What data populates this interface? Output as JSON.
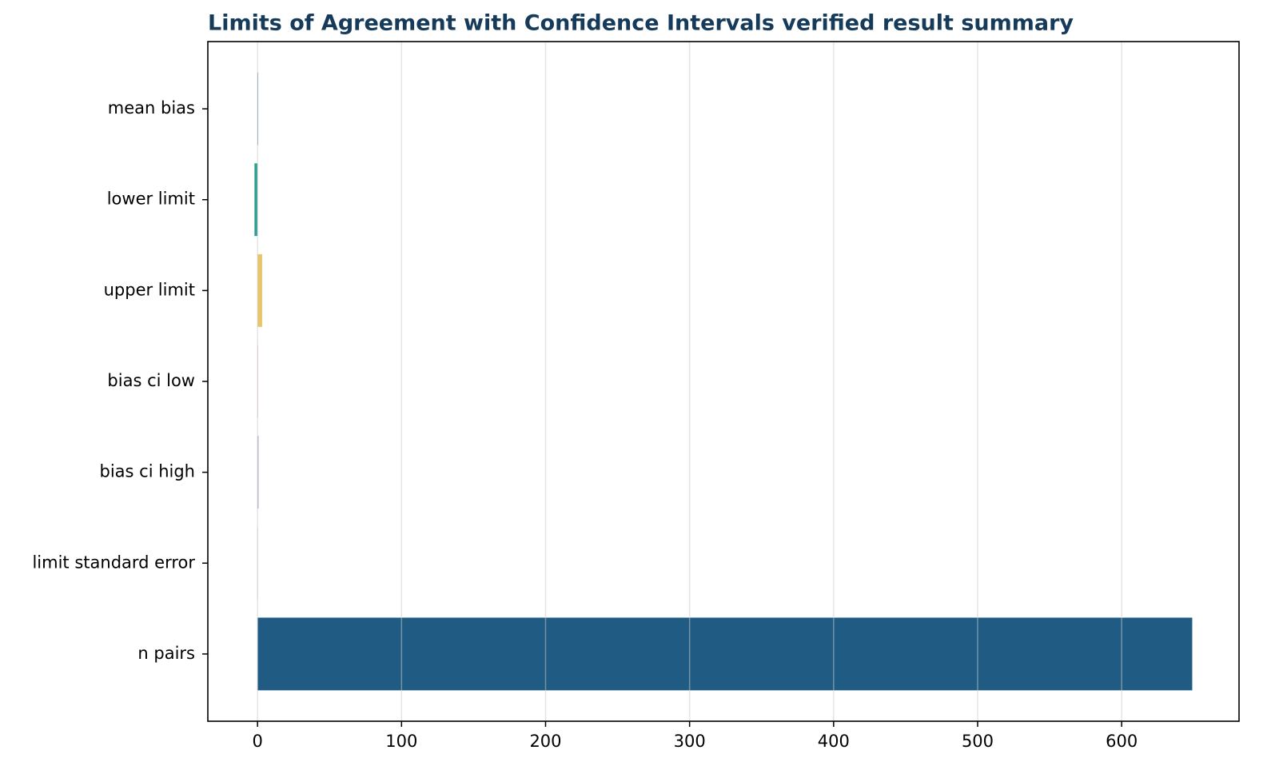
{
  "chart_data": {
    "type": "barh",
    "title": "Limits of Agreement with Confidence Intervals verified result summary",
    "categories": [
      "mean bias",
      "lower limit",
      "upper limit",
      "bias ci low",
      "bias ci high",
      "limit standard error",
      "n pairs"
    ],
    "values": [
      0.5,
      -2.1,
      3.2,
      0.3,
      0.7,
      0.2,
      649
    ],
    "colors": [
      "#6a9ab3",
      "#2a9d8f",
      "#e9c46a",
      "#e8a598",
      "#a9a3c9",
      "#8fb8c9",
      "#1f5b82"
    ],
    "xlim": [
      -34.5,
      681.5
    ],
    "xticks": [
      0,
      100,
      200,
      300,
      400,
      500,
      600
    ],
    "grid": true
  }
}
